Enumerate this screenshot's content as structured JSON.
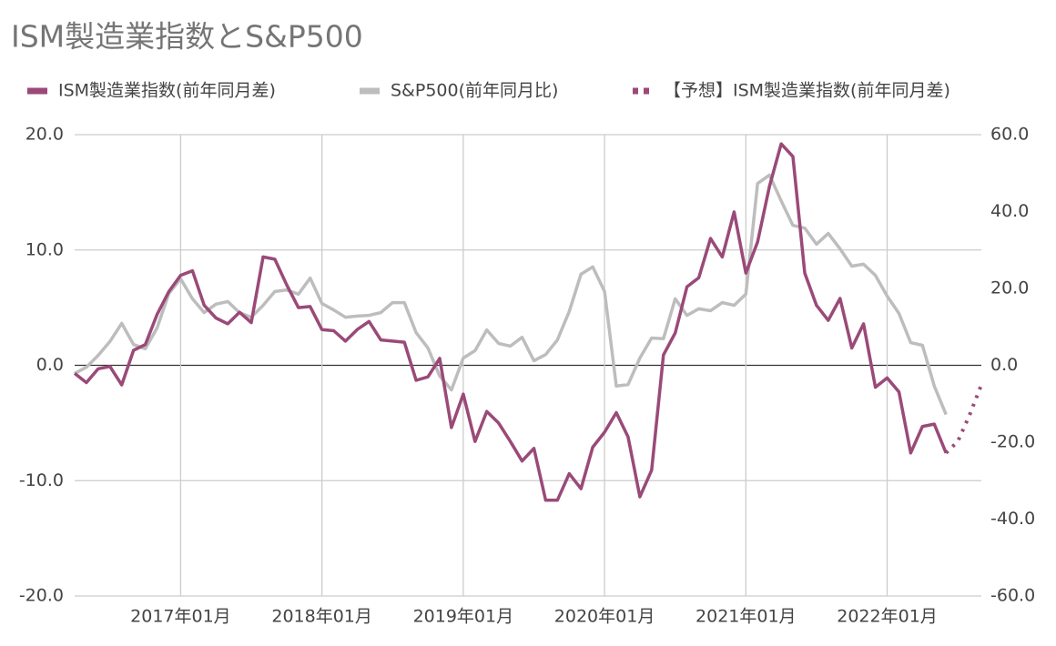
{
  "chart_data": {
    "type": "line",
    "title": "ISM製造業指数とS&P500",
    "categories": [
      null,
      null,
      null,
      null,
      null,
      null,
      null,
      null,
      null,
      "2017年01月",
      null,
      null,
      null,
      null,
      null,
      null,
      null,
      null,
      null,
      null,
      null,
      "2018年01月",
      null,
      null,
      null,
      null,
      null,
      null,
      null,
      null,
      null,
      null,
      null,
      "2019年01月",
      null,
      null,
      null,
      null,
      null,
      null,
      null,
      null,
      null,
      null,
      null,
      "2020年01月",
      null,
      null,
      null,
      null,
      null,
      null,
      null,
      null,
      null,
      null,
      null,
      "2021年01月",
      null,
      null,
      null,
      null,
      null,
      null,
      null,
      null,
      null,
      null,
      null,
      "2022年01月",
      null,
      null,
      null,
      null,
      null,
      null,
      null,
      null
    ],
    "series": [
      {
        "name": "ISM製造業指数(前年同月差)",
        "color": "#9a4a78",
        "axis": "y",
        "style": "solid",
        "values": [
          -0.7,
          -1.5,
          -0.3,
          -0.1,
          -1.7,
          1.3,
          1.8,
          4.4,
          6.4,
          7.8,
          8.2,
          5.2,
          4.1,
          3.6,
          4.6,
          3.7,
          9.4,
          9.2,
          7.0,
          5.0,
          5.1,
          3.1,
          3.0,
          2.1,
          3.1,
          3.8,
          2.2,
          2.1,
          2.0,
          -1.3,
          -1.0,
          0.6,
          -5.4,
          -2.5,
          -6.6,
          -4.0,
          -5.0,
          -6.6,
          -8.3,
          -7.2,
          -11.7,
          -11.7,
          -9.4,
          -10.7,
          -7.1,
          -5.8,
          -4.1,
          -6.2,
          -11.4,
          -9.1,
          0.9,
          2.8,
          6.8,
          7.6,
          11.0,
          9.4,
          13.3,
          8.0,
          10.7,
          15.5,
          19.2,
          18.1,
          8.0,
          5.2,
          3.9,
          5.8,
          1.5,
          3.6,
          -1.9,
          -1.1,
          -2.3,
          -7.6,
          -5.3,
          -5.1,
          -7.6,
          null,
          null,
          null
        ]
      },
      {
        "name": "S&P500(前年同月比)",
        "color": "#bdbdbd",
        "axis": "y2",
        "style": "solid",
        "values": [
          -2.1,
          -0.5,
          2.6,
          6.2,
          10.9,
          5.4,
          4.3,
          9.7,
          18.7,
          22.5,
          17.3,
          13.7,
          15.9,
          16.6,
          13.7,
          12.5,
          15.6,
          19.2,
          19.6,
          18.5,
          22.7,
          16.1,
          14.4,
          12.5,
          12.8,
          13.0,
          13.7,
          16.3,
          16.3,
          8.5,
          4.5,
          -2.8,
          -6.4,
          1.9,
          3.8,
          9.2,
          5.7,
          5.0,
          7.3,
          1.2,
          2.8,
          6.6,
          14.0,
          23.7,
          25.6,
          19.2,
          -5.4,
          -5.0,
          1.9,
          7.1,
          6.9,
          17.3,
          13.0,
          14.7,
          14.2,
          16.3,
          15.6,
          18.5,
          47.3,
          49.5,
          42.8,
          36.4,
          35.7,
          31.5,
          34.3,
          30.3,
          25.8,
          26.3,
          23.4,
          18.0,
          13.5,
          5.9,
          5.2,
          -5.4,
          -12.8,
          null,
          null,
          null
        ]
      },
      {
        "name": "【予想】ISM製造業指数(前年同月差)",
        "color": "#9a4a78",
        "axis": "y",
        "style": "dotted",
        "values": [
          null,
          null,
          null,
          null,
          null,
          null,
          null,
          null,
          null,
          null,
          null,
          null,
          null,
          null,
          null,
          null,
          null,
          null,
          null,
          null,
          null,
          null,
          null,
          null,
          null,
          null,
          null,
          null,
          null,
          null,
          null,
          null,
          null,
          null,
          null,
          null,
          null,
          null,
          null,
          null,
          null,
          null,
          null,
          null,
          null,
          null,
          null,
          null,
          null,
          null,
          null,
          null,
          null,
          null,
          null,
          null,
          null,
          null,
          null,
          null,
          null,
          null,
          null,
          null,
          null,
          null,
          null,
          null,
          null,
          null,
          null,
          null,
          null,
          null,
          -7.6,
          -6.6,
          -4.3,
          -1.7
        ]
      }
    ],
    "ylim": [
      -20,
      20
    ],
    "yticks": [
      {
        "value": -20,
        "label": "-20.0"
      },
      {
        "value": -10,
        "label": "-10.0"
      },
      {
        "value": 0,
        "label": "0.0"
      },
      {
        "value": 10,
        "label": "10.0"
      },
      {
        "value": 20,
        "label": "20.0"
      }
    ],
    "y2lim": [
      -60,
      60
    ],
    "y2ticks": [
      {
        "value": -60,
        "label": "-60.0"
      },
      {
        "value": -40,
        "label": "-40.0"
      },
      {
        "value": -20,
        "label": "-20.0"
      },
      {
        "value": 0,
        "label": "0.0"
      },
      {
        "value": 20,
        "label": "20.0"
      },
      {
        "value": 40,
        "label": "40.0"
      },
      {
        "value": 60,
        "label": "60.0"
      }
    ],
    "grid": true
  }
}
